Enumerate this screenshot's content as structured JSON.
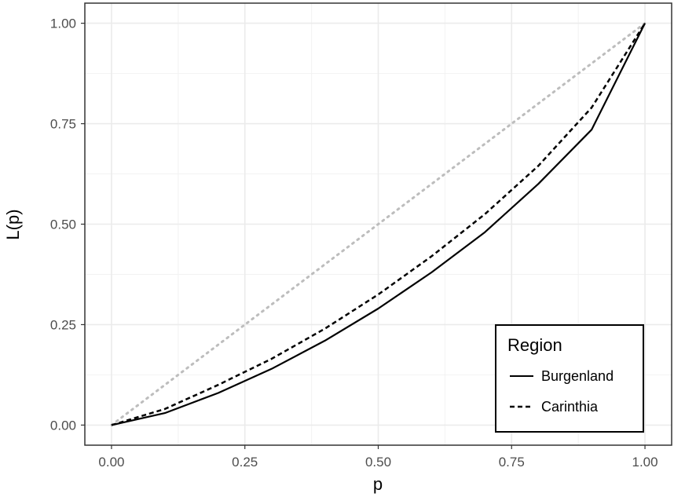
{
  "chart_data": {
    "type": "line",
    "xlabel": "p",
    "ylabel": "L(p)",
    "xlim": [
      -0.05,
      1.05
    ],
    "ylim": [
      -0.05,
      1.05
    ],
    "x_ticks": [
      "0.00",
      "0.25",
      "0.50",
      "0.75",
      "1.00"
    ],
    "y_ticks": [
      "0.00",
      "0.25",
      "0.50",
      "0.75",
      "1.00"
    ],
    "grid": true,
    "legend": {
      "title": "Region",
      "position": "bottom-right"
    },
    "reference_line": {
      "x": [
        0,
        1
      ],
      "y": [
        0,
        1
      ],
      "style": "dotted",
      "color": "#bdbdbd"
    },
    "series": [
      {
        "name": "Burgenland",
        "style": "solid",
        "x": [
          0.0,
          0.1,
          0.2,
          0.3,
          0.4,
          0.5,
          0.6,
          0.7,
          0.8,
          0.9,
          1.0
        ],
        "y": [
          0.0,
          0.03,
          0.08,
          0.14,
          0.21,
          0.29,
          0.38,
          0.48,
          0.6,
          0.735,
          1.0
        ]
      },
      {
        "name": "Carinthia",
        "style": "dashed",
        "x": [
          0.0,
          0.1,
          0.2,
          0.3,
          0.4,
          0.5,
          0.6,
          0.7,
          0.8,
          0.9,
          1.0
        ],
        "y": [
          0.0,
          0.04,
          0.1,
          0.165,
          0.24,
          0.325,
          0.42,
          0.525,
          0.645,
          0.79,
          1.0
        ]
      }
    ]
  }
}
